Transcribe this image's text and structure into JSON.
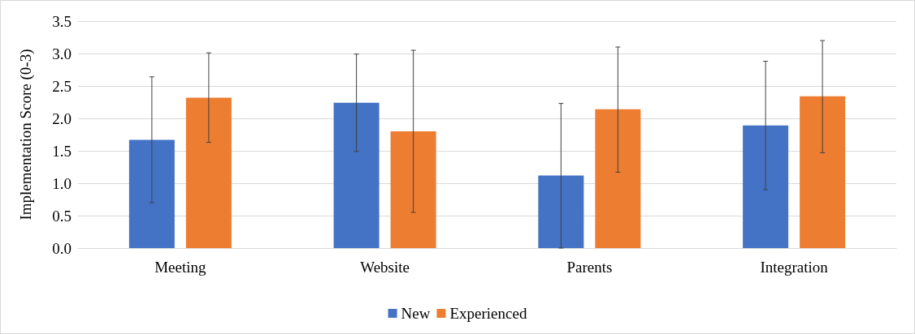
{
  "chart_data": {
    "type": "bar",
    "ylabel": "Implementation Score (0-3)",
    "categories": [
      "Meeting",
      "Website",
      "Parents",
      "Integration"
    ],
    "series": [
      {
        "name": "New",
        "color": "#4472c4",
        "values": [
          1.67,
          2.24,
          1.12,
          1.89
        ],
        "errors": [
          [
            0.7,
            2.64
          ],
          [
            1.49,
            2.99
          ],
          [
            0.0,
            2.23
          ],
          [
            0.9,
            2.88
          ]
        ]
      },
      {
        "name": "Experienced",
        "color": "#ed7d31",
        "values": [
          2.32,
          1.8,
          2.14,
          2.34
        ],
        "errors": [
          [
            1.63,
            3.01
          ],
          [
            0.55,
            3.05
          ],
          [
            1.17,
            3.1
          ],
          [
            1.47,
            3.2
          ]
        ]
      }
    ],
    "ylim": [
      0,
      3.5
    ],
    "yticks": [
      {
        "value": 0,
        "label": "0.0"
      },
      0.5,
      {
        "value": 1,
        "label": "1.0"
      },
      1.5,
      {
        "value": 2,
        "label": "2.0"
      },
      2.5,
      {
        "value": 3,
        "label": "3.0"
      },
      3.5
    ],
    "grid": "y",
    "legend": "bottom"
  }
}
